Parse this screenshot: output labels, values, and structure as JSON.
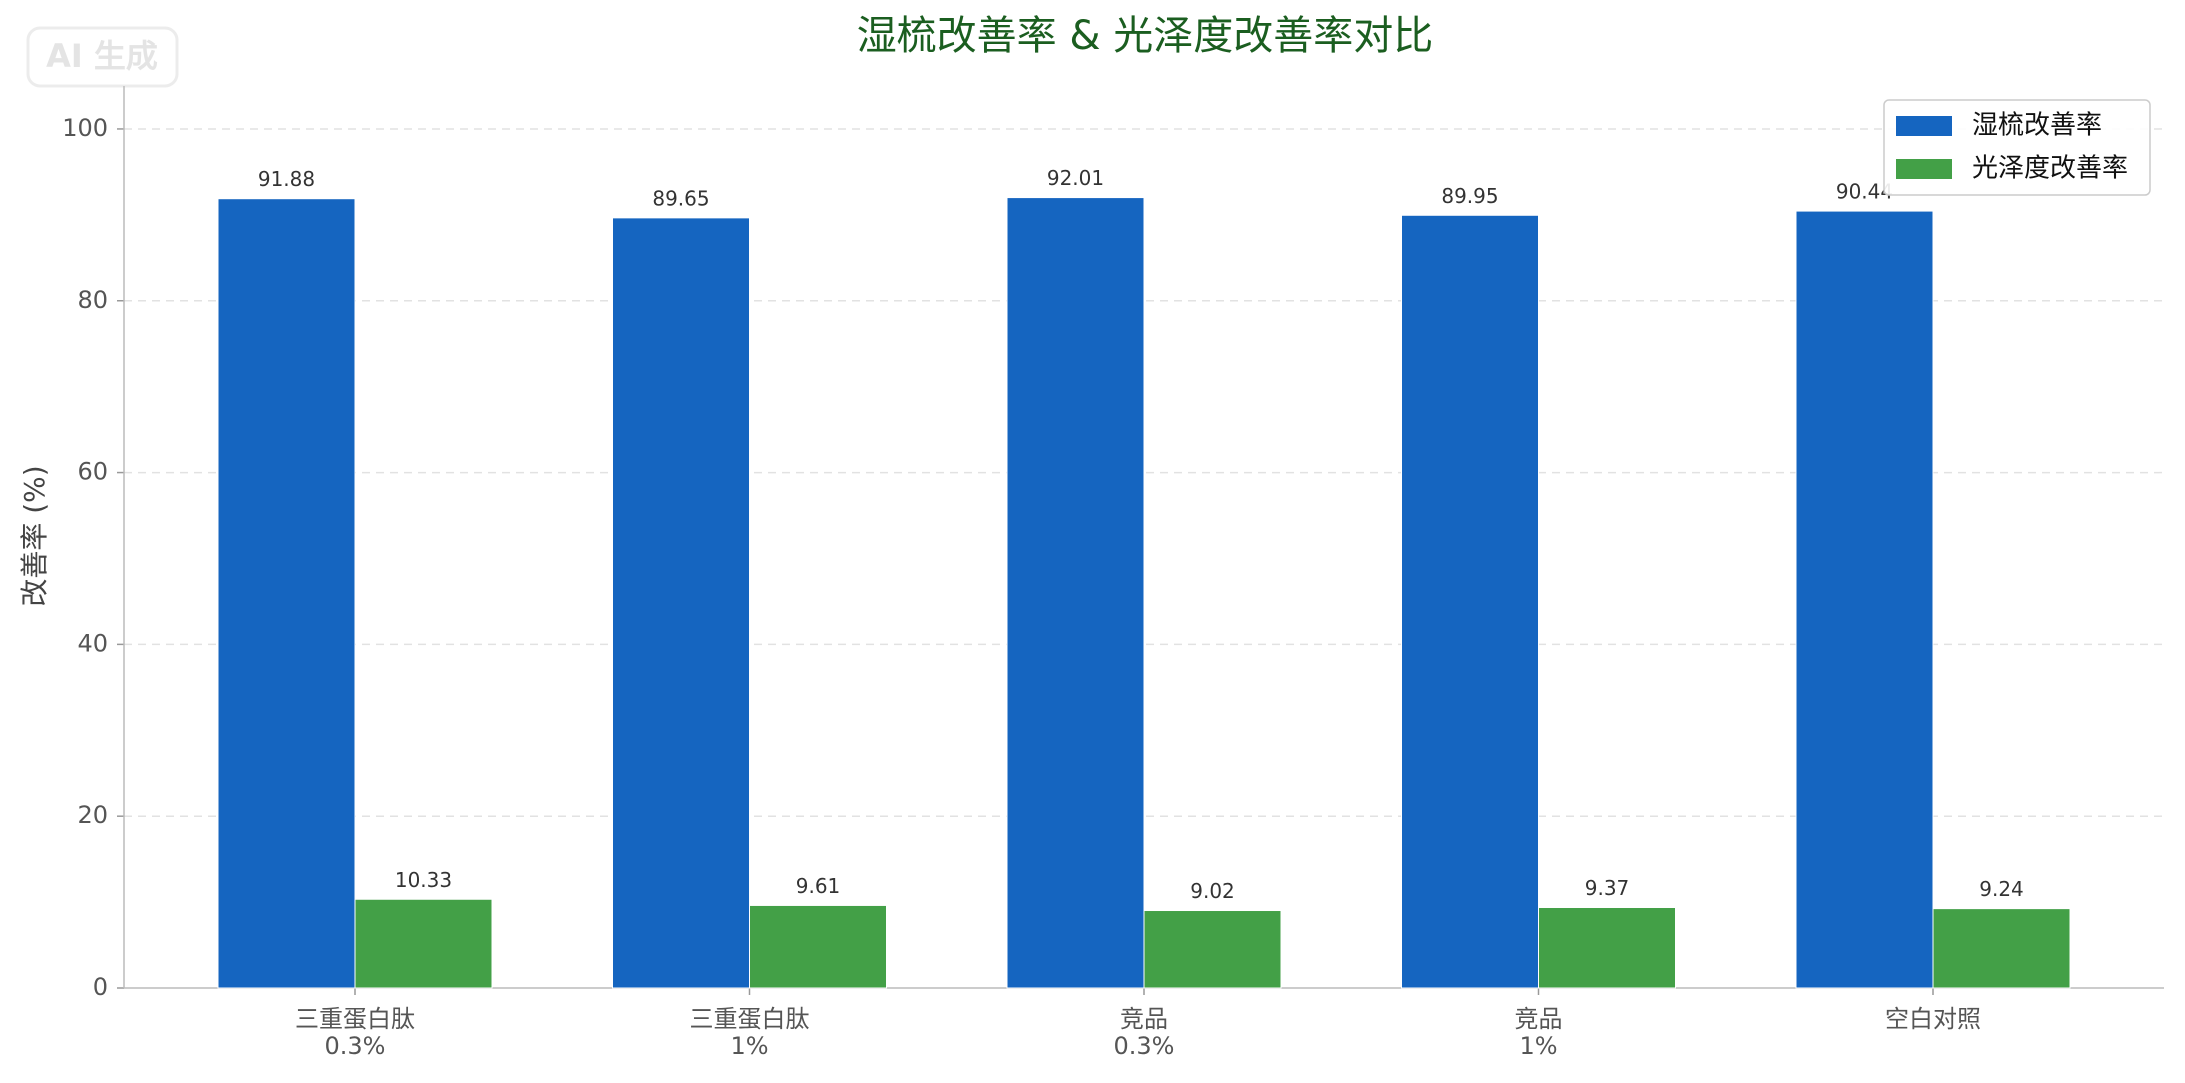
{
  "chart_data": {
    "type": "bar",
    "title": "湿梳改善率 & 光泽度改善率对比",
    "watermark": "AI 生成",
    "y_label": "改善率 (%)",
    "categories": [
      [
        "三重蛋白肽",
        "0.3%"
      ],
      [
        "三重蛋白肽",
        "1%"
      ],
      [
        "竞品",
        "0.3%"
      ],
      [
        "竞品",
        "1%"
      ],
      [
        "空白对照"
      ]
    ],
    "series": [
      {
        "name": "湿梳改善率",
        "color": "#1565c0",
        "values": [
          91.88,
          89.65,
          92.01,
          89.95,
          90.44
        ]
      },
      {
        "name": "光泽度改善率",
        "color": "#43a047",
        "values": [
          10.33,
          9.61,
          9.02,
          9.37,
          9.24
        ]
      }
    ],
    "ylim": [
      0,
      105
    ],
    "yticks": [
      0,
      20,
      40,
      60,
      80,
      100
    ],
    "grid": true,
    "legend": "upper right"
  }
}
